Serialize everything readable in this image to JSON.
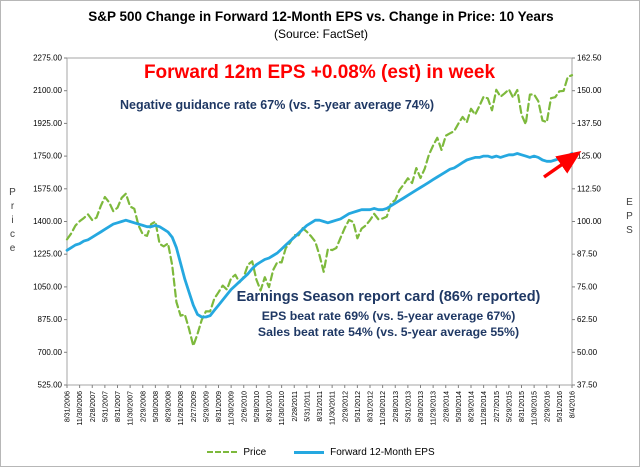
{
  "header": {
    "title": "S&P 500 Change in Forward 12-Month EPS vs. Change in Price: 10 Years",
    "subtitle": "(Source: FactSet)"
  },
  "colors": {
    "price": "#7db93c",
    "eps": "#25a8e0",
    "headline": "#ff0000",
    "note": "#1f3864",
    "arrow": "#ff0000"
  },
  "annotations": {
    "headline": "Forward 12m EPS +0.08% (est) in week",
    "guidance": "Negative guidance rate 67% (vs. 5-year average 74%)",
    "report_title": "Earnings Season report card (86% reported)",
    "report_line1": "EPS beat rate 69% (vs. 5-year average 67%)",
    "report_line2": "Sales beat rate 54% (vs. 5-year average 55%)"
  },
  "chart_data": {
    "type": "line",
    "title": "S&P 500 Change in Forward 12-Month EPS vs. Change in Price: 10 Years",
    "source": "(Source: FactSet)",
    "grid": false,
    "legend_position": "bottom",
    "left_axis": {
      "title": "Price",
      "min": 525,
      "max": 2275,
      "ticks": [
        "2275.00",
        "2100.00",
        "1925.00",
        "1750.00",
        "1575.00",
        "1400.00",
        "1225.00",
        "1050.00",
        "875.00",
        "700.00",
        "525.00"
      ]
    },
    "right_axis": {
      "title": "EPS",
      "min": 37.5,
      "max": 162.5,
      "ticks": [
        "162.50",
        "150.00",
        "137.50",
        "125.00",
        "112.50",
        "100.00",
        "87.50",
        "75.00",
        "62.50",
        "50.00",
        "37.50"
      ]
    },
    "categories": [
      "8/31/2006",
      "11/30/2006",
      "2/28/2007",
      "5/31/2007",
      "8/31/2007",
      "11/30/2007",
      "2/29/2008",
      "5/30/2008",
      "8/29/2008",
      "11/28/2008",
      "2/27/2009",
      "5/29/2009",
      "8/31/2009",
      "11/30/2009",
      "2/26/2010",
      "5/28/2010",
      "8/31/2010",
      "11/30/2010",
      "2/28/2011",
      "5/31/2011",
      "8/31/2011",
      "11/30/2011",
      "2/29/2012",
      "5/31/2012",
      "8/31/2012",
      "11/30/2012",
      "2/28/2013",
      "5/31/2013",
      "8/30/2013",
      "11/29/2013",
      "2/28/2014",
      "5/30/2014",
      "8/29/2014",
      "11/28/2014",
      "2/27/2015",
      "5/29/2015",
      "8/31/2015",
      "11/30/2015",
      "2/29/2016",
      "5/31/2016",
      "8/4/2016"
    ],
    "series": [
      {
        "name": "Price",
        "axis": "left",
        "color": "#7db93c",
        "dash": "7 4",
        "width": 2.2,
        "values": [
          1304,
          1336,
          1378,
          1401,
          1418,
          1438,
          1407,
          1421,
          1482,
          1531,
          1503,
          1455,
          1474,
          1527,
          1549,
          1481,
          1468,
          1379,
          1331,
          1323,
          1386,
          1400,
          1280,
          1267,
          1283,
          1166,
          969,
          896,
          903,
          826,
          735,
          798,
          873,
          919,
          919,
          987,
          1021,
          1057,
          1036,
          1096,
          1115,
          1074,
          1104,
          1169,
          1187,
          1089,
          1031,
          1102,
          1049,
          1141,
          1183,
          1181,
          1258,
          1286,
          1327,
          1326,
          1364,
          1345,
          1321,
          1292,
          1219,
          1131,
          1253,
          1247,
          1258,
          1312,
          1366,
          1408,
          1398,
          1310,
          1362,
          1379,
          1407,
          1441,
          1412,
          1416,
          1426,
          1498,
          1515,
          1569,
          1598,
          1631,
          1606,
          1686,
          1633,
          1682,
          1757,
          1806,
          1848,
          1783,
          1859,
          1872,
          1884,
          1924,
          1960,
          1931,
          2003,
          1972,
          2018,
          2068,
          2059,
          1995,
          2105,
          2068,
          2086,
          2107,
          2063,
          2104,
          1972,
          1920,
          2079,
          2080,
          2044,
          1940,
          1932,
          2060,
          2065,
          2097,
          2099,
          2174,
          2183
        ]
      },
      {
        "name": "Forward 12-Month EPS",
        "axis": "right",
        "color": "#25a8e0",
        "dash": null,
        "width": 2.8,
        "values": [
          89,
          90,
          91,
          91.5,
          92.5,
          93,
          94,
          95,
          96,
          97,
          98,
          99,
          99.5,
          100,
          100.5,
          100,
          99.5,
          99,
          98.5,
          98,
          98,
          98.5,
          98,
          97,
          96,
          94,
          90,
          84,
          78,
          73,
          68,
          64.5,
          63.5,
          63.5,
          64,
          66,
          68,
          70,
          72,
          74,
          75.5,
          77,
          78.5,
          80,
          82,
          83.5,
          84.5,
          85.5,
          86,
          87,
          88,
          89.5,
          91,
          92.5,
          94,
          95.5,
          97,
          98.5,
          99.5,
          100.5,
          100.5,
          100,
          99.5,
          100,
          100.5,
          101,
          102,
          103,
          103.5,
          104,
          104.5,
          104.5,
          104.5,
          105,
          104.5,
          104.5,
          105,
          106,
          107,
          108,
          109,
          110,
          111,
          112,
          113,
          114,
          115,
          116,
          117,
          118,
          119,
          120,
          120.5,
          121.5,
          122.5,
          123.5,
          124,
          124.5,
          124.5,
          125,
          125,
          124.5,
          125,
          124.5,
          125,
          125.5,
          125.5,
          126,
          125.5,
          125,
          124.5,
          125,
          124.5,
          123.5,
          123,
          123,
          123.5,
          124,
          124.5,
          125,
          126
        ]
      }
    ]
  }
}
